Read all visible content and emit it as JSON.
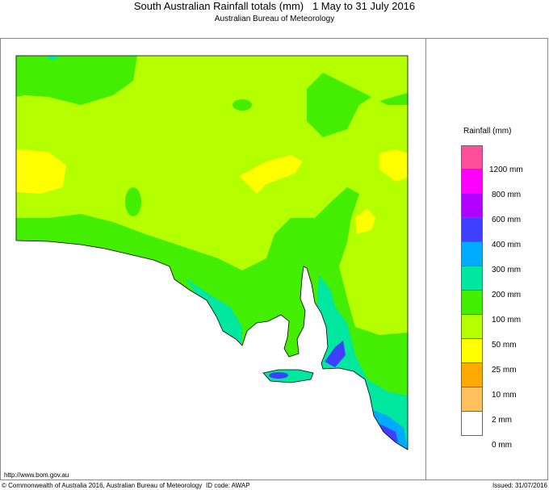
{
  "header": {
    "title": "South Australian Rainfall totals (mm)   1 May to 31 July 2016",
    "subtitle": "Australian Bureau of Meteorology"
  },
  "legend": {
    "title": "Rainfall (mm)",
    "bands": [
      {
        "color": "#ff4f9a"
      },
      {
        "color": "#ff00ff"
      },
      {
        "color": "#b000ff"
      },
      {
        "color": "#3f3fff"
      },
      {
        "color": "#00aaff"
      },
      {
        "color": "#00e8a0"
      },
      {
        "color": "#44ee00"
      },
      {
        "color": "#b4ff00"
      },
      {
        "color": "#ffff00"
      },
      {
        "color": "#ffaa00"
      },
      {
        "color": "#ffc060"
      },
      {
        "color": "#ffffff"
      }
    ],
    "labels": [
      "1200 mm",
      "800 mm",
      "600 mm",
      "400 mm",
      "300 mm",
      "200 mm",
      "100 mm",
      "50 mm",
      "25 mm",
      "10 mm",
      "2 mm",
      "0 mm"
    ]
  },
  "footer": {
    "url": "http://www.bom.gov.au",
    "copyright": "© Commonwealth of Australia 2016, Australian Bureau of Meteorology",
    "id_code": "ID code: AWAP",
    "issued": "Issued: 31/07/2016"
  }
}
